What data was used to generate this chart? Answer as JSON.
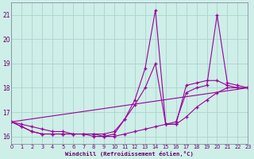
{
  "xlabel": "Windchill (Refroidissement éolien,°C)",
  "bg_color": "#ceeee8",
  "grid_color": "#aad4cc",
  "line_color": "#990099",
  "xlim": [
    0,
    23
  ],
  "ylim": [
    15.7,
    21.5
  ],
  "yticks": [
    16,
    17,
    18,
    19,
    20,
    21
  ],
  "xticks": [
    0,
    1,
    2,
    3,
    4,
    5,
    6,
    7,
    8,
    9,
    10,
    11,
    12,
    13,
    14,
    15,
    16,
    17,
    18,
    19,
    20,
    21,
    22,
    23
  ],
  "line1_x": [
    0,
    1,
    2,
    3,
    4,
    5,
    6,
    7,
    8,
    9,
    10,
    11,
    12,
    13,
    14,
    15,
    16,
    17,
    18,
    19,
    20,
    21,
    22,
    23
  ],
  "line1_y": [
    16.6,
    16.4,
    16.2,
    16.1,
    16.1,
    16.1,
    16.1,
    16.1,
    16.1,
    16.0,
    16.1,
    16.7,
    17.5,
    18.8,
    21.2,
    16.5,
    16.5,
    18.1,
    18.2,
    18.3,
    18.3,
    18.1,
    18.0,
    18.0
  ],
  "line2_x": [
    0,
    1,
    2,
    3,
    4,
    5,
    6,
    7,
    8,
    9,
    10,
    11,
    12,
    13,
    14,
    15,
    16,
    17,
    18,
    19,
    20,
    21,
    22,
    23
  ],
  "line2_y": [
    16.6,
    16.4,
    16.2,
    16.1,
    16.1,
    16.1,
    16.1,
    16.1,
    16.0,
    16.0,
    16.0,
    16.1,
    16.2,
    16.3,
    16.4,
    16.5,
    16.5,
    16.8,
    17.2,
    17.5,
    17.8,
    18.0,
    18.0,
    18.0
  ],
  "line3_x": [
    0,
    1,
    2,
    3,
    4,
    5,
    6,
    7,
    8,
    9,
    10,
    11,
    12,
    13,
    14,
    15,
    16,
    17,
    18,
    19,
    20,
    21,
    22,
    23
  ],
  "line3_y": [
    16.6,
    16.5,
    16.4,
    16.3,
    16.2,
    16.2,
    16.1,
    16.1,
    16.1,
    16.1,
    16.2,
    16.7,
    17.3,
    18.0,
    19.0,
    16.5,
    16.6,
    17.8,
    18.0,
    18.1,
    21.0,
    18.2,
    18.1,
    18.0
  ],
  "line4_x": [
    0,
    23
  ],
  "line4_y": [
    16.6,
    18.0
  ]
}
